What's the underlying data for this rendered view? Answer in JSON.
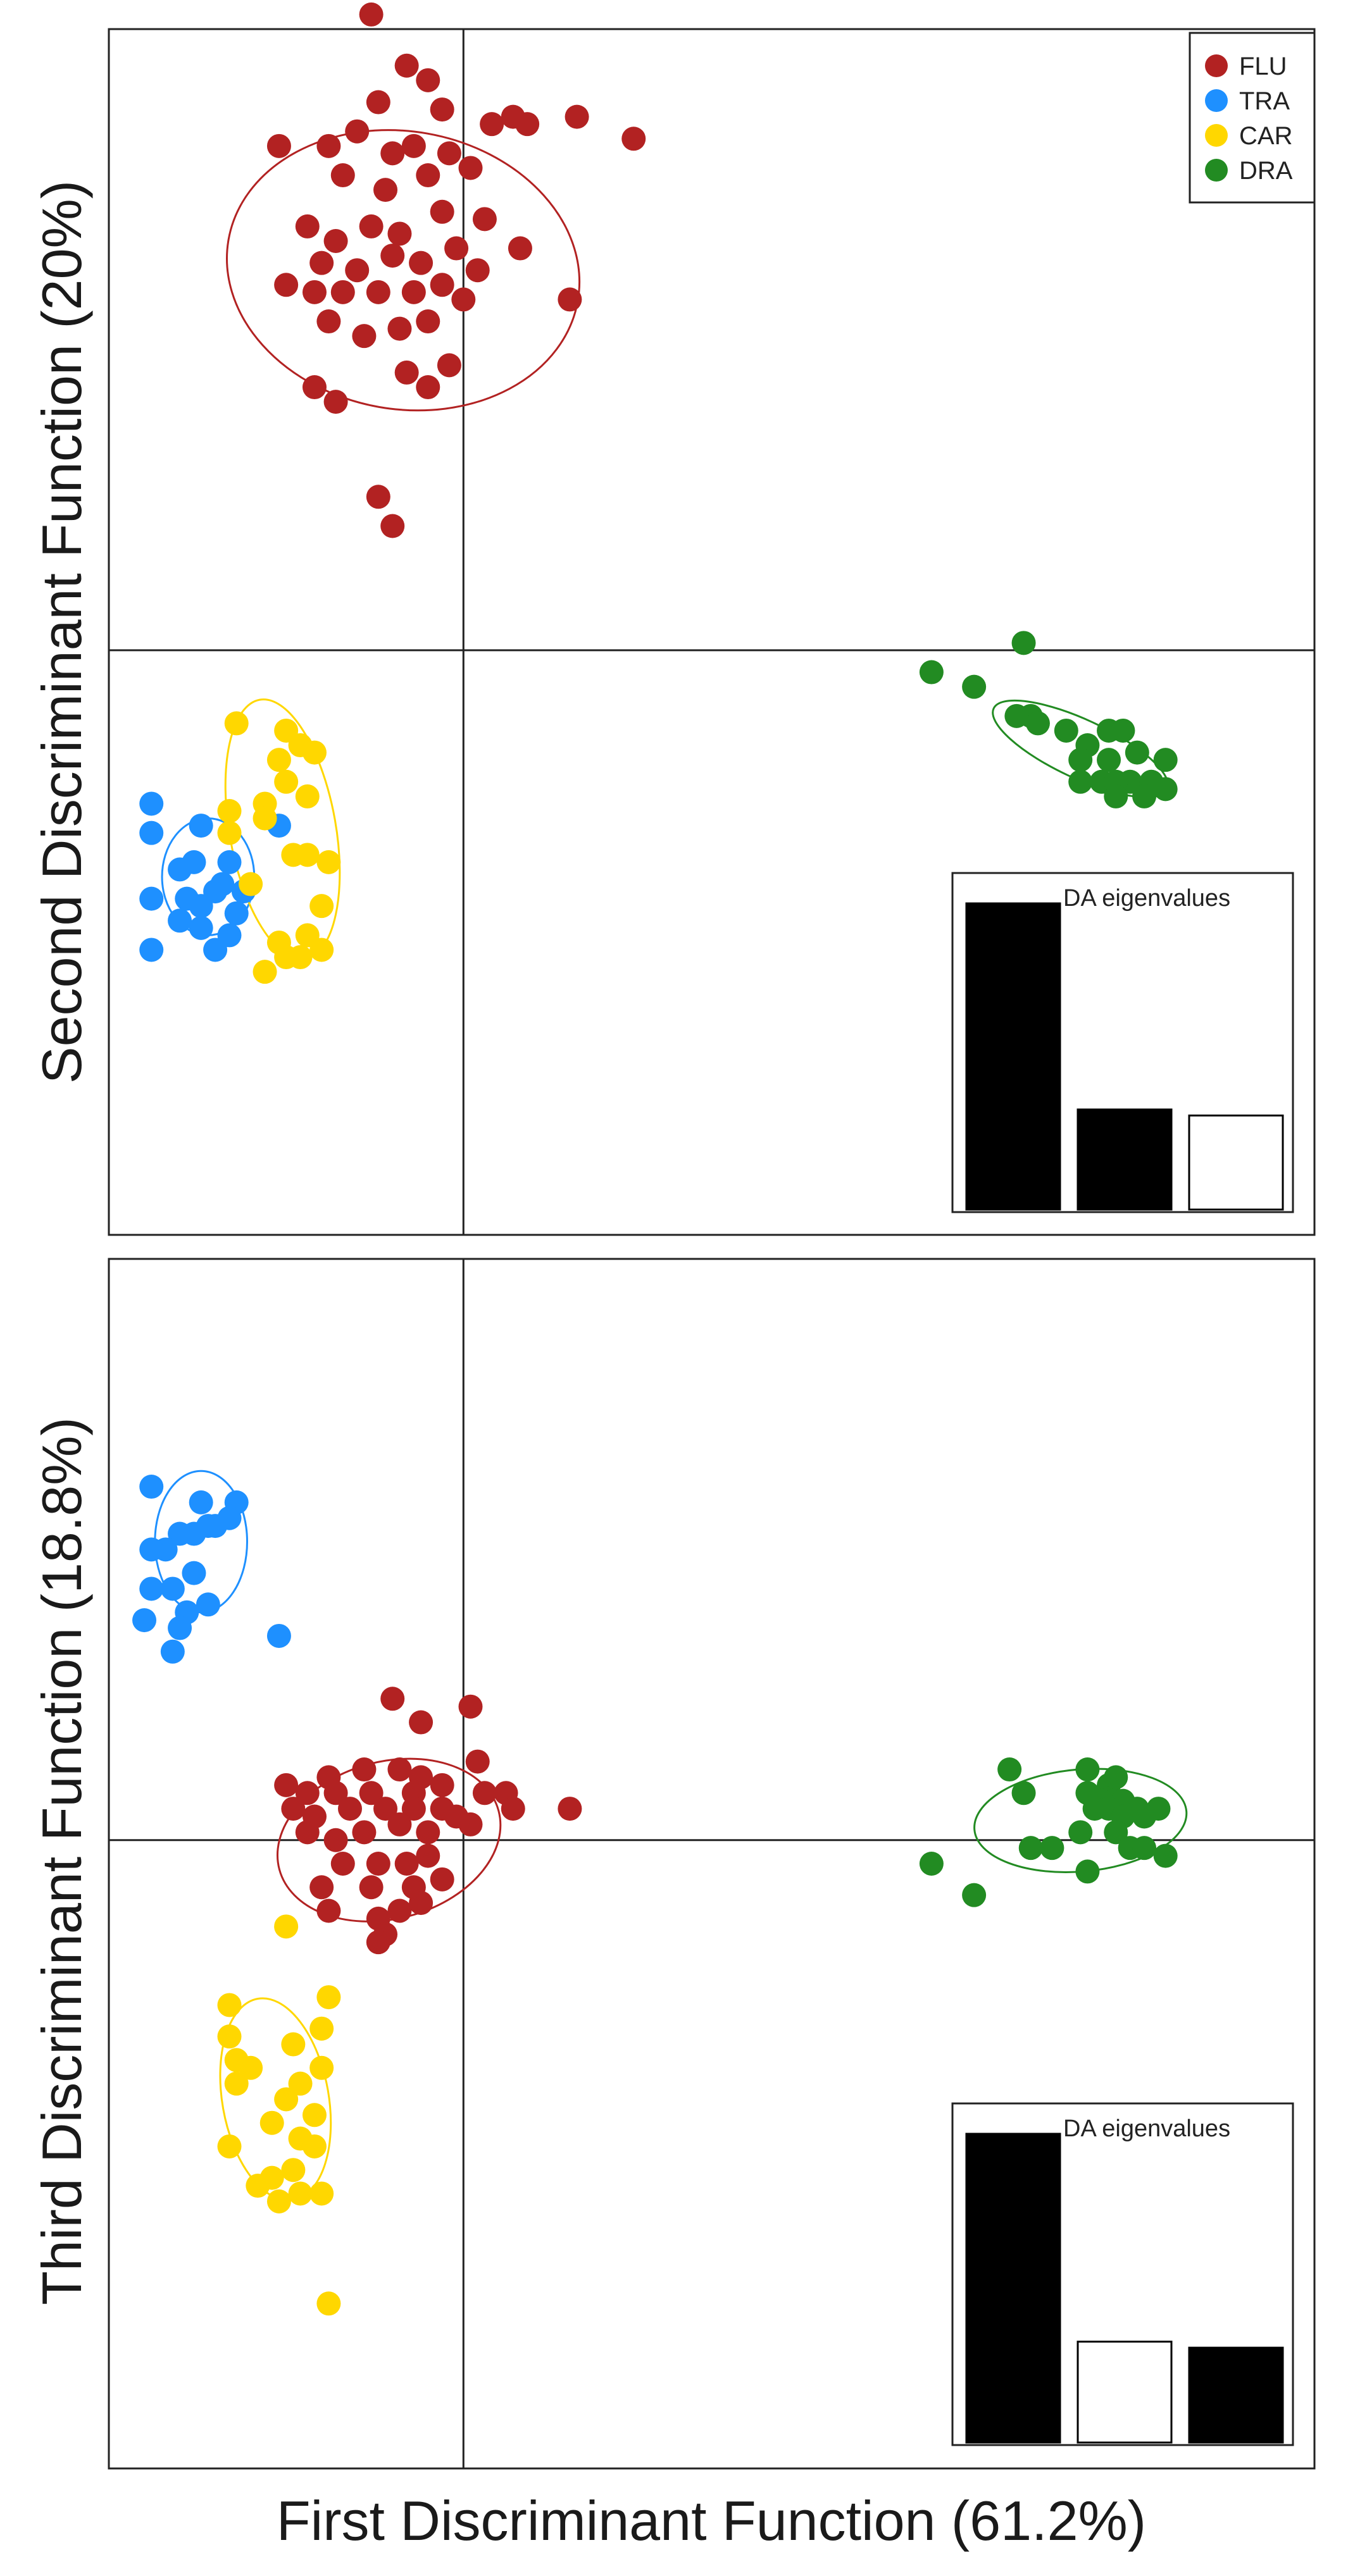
{
  "figure": {
    "xlabel": "First Discriminant Function (61.2%)"
  },
  "chart_data": [
    {
      "type": "scatter",
      "panel": "top",
      "xlabel": "",
      "ylabel": "Second Discriminant Function (20%)",
      "xlim": [
        -5.0,
        12.0
      ],
      "ylim": [
        -8.0,
        8.5
      ],
      "grid": false,
      "crosshair": [
        0,
        0
      ],
      "legend": {
        "placement": "top-right",
        "entries": [
          {
            "label": "FLU",
            "color": "#b22222"
          },
          {
            "label": "TRA",
            "color": "#1e90ff"
          },
          {
            "label": "CAR",
            "color": "#ffd700"
          },
          {
            "label": "DRA",
            "color": "#228b22"
          }
        ]
      },
      "series": [
        {
          "name": "FLU",
          "color": "#b22222",
          "ellipse": {
            "cx": -0.85,
            "cy": 5.2,
            "rx": 2.5,
            "ry": 1.9,
            "angle": 10
          },
          "points": [
            [
              -1.3,
              8.7
            ],
            [
              -0.8,
              8.0
            ],
            [
              -0.5,
              7.8
            ],
            [
              -1.2,
              7.5
            ],
            [
              -1.5,
              7.1
            ],
            [
              -1.9,
              6.9
            ],
            [
              -2.6,
              6.9
            ],
            [
              -0.3,
              7.4
            ],
            [
              0.4,
              7.2
            ],
            [
              0.7,
              7.3
            ],
            [
              0.9,
              7.2
            ],
            [
              1.6,
              7.3
            ],
            [
              2.4,
              7.0
            ],
            [
              -1.0,
              6.8
            ],
            [
              -0.7,
              6.9
            ],
            [
              -0.2,
              6.8
            ],
            [
              -1.7,
              6.5
            ],
            [
              -1.1,
              6.3
            ],
            [
              -0.5,
              6.5
            ],
            [
              0.1,
              6.6
            ],
            [
              -2.2,
              5.8
            ],
            [
              -1.8,
              5.6
            ],
            [
              -1.3,
              5.8
            ],
            [
              -0.9,
              5.7
            ],
            [
              -0.3,
              6.0
            ],
            [
              0.3,
              5.9
            ],
            [
              -2.0,
              5.3
            ],
            [
              -1.5,
              5.2
            ],
            [
              -1.0,
              5.4
            ],
            [
              -0.6,
              5.3
            ],
            [
              -0.1,
              5.5
            ],
            [
              -2.5,
              5.0
            ],
            [
              -2.1,
              4.9
            ],
            [
              -1.7,
              4.9
            ],
            [
              -1.2,
              4.9
            ],
            [
              -0.7,
              4.9
            ],
            [
              -0.3,
              5.0
            ],
            [
              0.2,
              5.2
            ],
            [
              0.8,
              5.5
            ],
            [
              -1.9,
              4.5
            ],
            [
              -1.4,
              4.3
            ],
            [
              -0.9,
              4.4
            ],
            [
              -0.5,
              4.5
            ],
            [
              0.0,
              4.8
            ],
            [
              -2.1,
              3.6
            ],
            [
              -1.8,
              3.4
            ],
            [
              -0.8,
              3.8
            ],
            [
              -0.5,
              3.6
            ],
            [
              -0.2,
              3.9
            ],
            [
              1.5,
              4.8
            ],
            [
              -1.2,
              2.1
            ],
            [
              -1.0,
              1.7
            ]
          ]
        },
        {
          "name": "TRA",
          "color": "#1e90ff",
          "ellipse": {
            "cx": -3.6,
            "cy": -3.1,
            "rx": 0.65,
            "ry": 0.8,
            "angle": 0
          },
          "points": [
            [
              -4.4,
              -2.1
            ],
            [
              -4.4,
              -2.5
            ],
            [
              -3.7,
              -2.4
            ],
            [
              -4.0,
              -3.0
            ],
            [
              -3.8,
              -2.9
            ],
            [
              -3.3,
              -2.9
            ],
            [
              -4.4,
              -3.4
            ],
            [
              -3.9,
              -3.4
            ],
            [
              -3.7,
              -3.5
            ],
            [
              -3.5,
              -3.3
            ],
            [
              -3.4,
              -3.2
            ],
            [
              -3.1,
              -3.3
            ],
            [
              -4.0,
              -3.7
            ],
            [
              -3.7,
              -3.8
            ],
            [
              -3.2,
              -3.6
            ],
            [
              -3.5,
              -4.1
            ],
            [
              -3.3,
              -3.9
            ],
            [
              -4.4,
              -4.1
            ],
            [
              -2.6,
              -2.4
            ]
          ]
        },
        {
          "name": "CAR",
          "color": "#ffd700",
          "ellipse": {
            "cx": -2.55,
            "cy": -2.45,
            "rx": 0.75,
            "ry": 1.8,
            "angle": -10
          },
          "points": [
            [
              -3.2,
              -1.0
            ],
            [
              -2.5,
              -1.1
            ],
            [
              -2.3,
              -1.3
            ],
            [
              -2.6,
              -1.5
            ],
            [
              -2.1,
              -1.4
            ],
            [
              -2.5,
              -1.8
            ],
            [
              -2.8,
              -2.1
            ],
            [
              -3.3,
              -2.2
            ],
            [
              -2.8,
              -2.3
            ],
            [
              -2.2,
              -2.0
            ],
            [
              -3.3,
              -2.5
            ],
            [
              -2.4,
              -2.8
            ],
            [
              -2.2,
              -2.8
            ],
            [
              -1.9,
              -2.9
            ],
            [
              -3.0,
              -3.2
            ],
            [
              -2.0,
              -3.5
            ],
            [
              -2.2,
              -3.9
            ],
            [
              -2.6,
              -4.0
            ],
            [
              -2.0,
              -4.1
            ],
            [
              -2.3,
              -4.2
            ],
            [
              -2.5,
              -4.2
            ],
            [
              -2.8,
              -4.4
            ]
          ]
        },
        {
          "name": "DRA",
          "color": "#228b22",
          "ellipse": {
            "cx": 8.7,
            "cy": -1.35,
            "rx": 1.35,
            "ry": 0.4,
            "angle": 25
          },
          "points": [
            [
              7.9,
              0.1
            ],
            [
              6.6,
              -0.3
            ],
            [
              7.2,
              -0.5
            ],
            [
              7.8,
              -0.9
            ],
            [
              8.0,
              -0.9
            ],
            [
              8.1,
              -1.0
            ],
            [
              8.5,
              -1.1
            ],
            [
              9.1,
              -1.1
            ],
            [
              9.3,
              -1.1
            ],
            [
              8.8,
              -1.3
            ],
            [
              9.5,
              -1.4
            ],
            [
              8.7,
              -1.5
            ],
            [
              9.1,
              -1.5
            ],
            [
              9.4,
              -1.8
            ],
            [
              9.9,
              -1.5
            ],
            [
              8.7,
              -1.8
            ],
            [
              9.0,
              -1.8
            ],
            [
              9.2,
              -1.8
            ],
            [
              9.7,
              -1.8
            ],
            [
              9.2,
              -2.0
            ],
            [
              9.6,
              -2.0
            ],
            [
              9.9,
              -1.9
            ]
          ]
        }
      ],
      "inset": {
        "title": "DA eigenvalues",
        "placement": "bottom-right",
        "bars": [
          {
            "value": 61.2,
            "highlighted": true
          },
          {
            "value": 20.0,
            "highlighted": true
          },
          {
            "value": 18.8,
            "highlighted": false
          }
        ]
      }
    },
    {
      "type": "scatter",
      "panel": "bottom",
      "xlabel": "First Discriminant Function (61.2%)",
      "ylabel": "Third Discriminant Function (18.8%)",
      "xlim": [
        -5.0,
        12.0
      ],
      "ylim": [
        -8.0,
        7.4
      ],
      "grid": false,
      "crosshair": [
        0,
        0
      ],
      "series": [
        {
          "name": "FLU",
          "color": "#b22222",
          "ellipse": {
            "cx": -1.05,
            "cy": 0.0,
            "rx": 1.6,
            "ry": 1.0,
            "angle": -15
          },
          "points": [
            [
              -1.0,
              1.8
            ],
            [
              -0.6,
              1.5
            ],
            [
              0.1,
              1.7
            ],
            [
              0.2,
              1.0
            ],
            [
              -1.9,
              0.8
            ],
            [
              -1.4,
              0.9
            ],
            [
              -0.9,
              0.9
            ],
            [
              -0.6,
              0.8
            ],
            [
              -2.5,
              0.7
            ],
            [
              -2.2,
              0.6
            ],
            [
              -1.8,
              0.6
            ],
            [
              -1.3,
              0.6
            ],
            [
              -0.7,
              0.6
            ],
            [
              -0.3,
              0.7
            ],
            [
              0.3,
              0.6
            ],
            [
              0.6,
              0.6
            ],
            [
              -2.4,
              0.4
            ],
            [
              -2.1,
              0.3
            ],
            [
              -1.6,
              0.4
            ],
            [
              -1.1,
              0.4
            ],
            [
              -0.7,
              0.4
            ],
            [
              -0.3,
              0.4
            ],
            [
              0.7,
              0.4
            ],
            [
              -2.2,
              0.1
            ],
            [
              -1.8,
              0.0
            ],
            [
              -1.4,
              0.1
            ],
            [
              -0.9,
              0.2
            ],
            [
              -0.5,
              0.1
            ],
            [
              -0.1,
              0.3
            ],
            [
              0.1,
              0.2
            ],
            [
              1.5,
              0.4
            ],
            [
              -1.7,
              -0.3
            ],
            [
              -1.2,
              -0.3
            ],
            [
              -0.8,
              -0.3
            ],
            [
              -0.5,
              -0.2
            ],
            [
              -2.0,
              -0.6
            ],
            [
              -1.3,
              -0.6
            ],
            [
              -0.7,
              -0.6
            ],
            [
              -0.3,
              -0.5
            ],
            [
              -1.9,
              -0.9
            ],
            [
              -1.2,
              -1.0
            ],
            [
              -0.9,
              -0.9
            ],
            [
              -0.6,
              -0.8
            ],
            [
              -1.1,
              -1.2
            ],
            [
              -1.2,
              -1.3
            ]
          ]
        },
        {
          "name": "TRA",
          "color": "#1e90ff",
          "ellipse": {
            "cx": -3.7,
            "cy": 3.8,
            "rx": 0.65,
            "ry": 0.9,
            "angle": 0
          },
          "points": [
            [
              -4.4,
              4.5
            ],
            [
              -3.7,
              4.3
            ],
            [
              -3.2,
              4.3
            ],
            [
              -3.3,
              4.1
            ],
            [
              -3.6,
              4.0
            ],
            [
              -3.5,
              4.0
            ],
            [
              -3.8,
              3.9
            ],
            [
              -4.0,
              3.9
            ],
            [
              -4.2,
              3.7
            ],
            [
              -4.4,
              3.7
            ],
            [
              -3.8,
              3.4
            ],
            [
              -4.4,
              3.2
            ],
            [
              -4.1,
              3.2
            ],
            [
              -3.6,
              3.0
            ],
            [
              -3.9,
              2.9
            ],
            [
              -4.5,
              2.8
            ],
            [
              -4.0,
              2.7
            ],
            [
              -2.6,
              2.6
            ],
            [
              -4.1,
              2.4
            ]
          ]
        },
        {
          "name": "CAR",
          "color": "#ffd700",
          "ellipse": {
            "cx": -2.65,
            "cy": -3.3,
            "rx": 0.75,
            "ry": 1.3,
            "angle": -10
          },
          "points": [
            [
              -2.5,
              -1.1
            ],
            [
              -1.9,
              -2.0
            ],
            [
              -3.3,
              -2.1
            ],
            [
              -2.0,
              -2.4
            ],
            [
              -3.3,
              -2.5
            ],
            [
              -2.4,
              -2.6
            ],
            [
              -3.2,
              -2.8
            ],
            [
              -3.0,
              -2.9
            ],
            [
              -2.0,
              -2.9
            ],
            [
              -3.2,
              -3.1
            ],
            [
              -2.3,
              -3.1
            ],
            [
              -2.5,
              -3.3
            ],
            [
              -2.1,
              -3.5
            ],
            [
              -2.7,
              -3.6
            ],
            [
              -3.3,
              -3.9
            ],
            [
              -2.3,
              -3.8
            ],
            [
              -2.1,
              -3.9
            ],
            [
              -2.4,
              -4.2
            ],
            [
              -2.7,
              -4.3
            ],
            [
              -2.3,
              -4.5
            ],
            [
              -2.6,
              -4.6
            ],
            [
              -2.9,
              -4.4
            ],
            [
              -2.0,
              -4.5
            ],
            [
              -1.9,
              -5.9
            ]
          ]
        },
        {
          "name": "DRA",
          "color": "#228b22",
          "ellipse": {
            "cx": 8.7,
            "cy": 0.25,
            "rx": 1.5,
            "ry": 0.65,
            "angle": -5
          },
          "points": [
            [
              7.7,
              0.9
            ],
            [
              8.8,
              0.9
            ],
            [
              9.1,
              0.7
            ],
            [
              9.2,
              0.8
            ],
            [
              7.9,
              0.6
            ],
            [
              8.8,
              0.6
            ],
            [
              9.0,
              0.5
            ],
            [
              9.3,
              0.5
            ],
            [
              9.5,
              0.4
            ],
            [
              9.8,
              0.4
            ],
            [
              8.9,
              0.4
            ],
            [
              9.1,
              0.4
            ],
            [
              9.3,
              0.3
            ],
            [
              9.6,
              0.3
            ],
            [
              8.7,
              0.1
            ],
            [
              9.2,
              0.1
            ],
            [
              8.0,
              -0.1
            ],
            [
              8.3,
              -0.1
            ],
            [
              9.4,
              -0.1
            ],
            [
              9.6,
              -0.1
            ],
            [
              9.9,
              -0.2
            ],
            [
              8.8,
              -0.4
            ],
            [
              6.6,
              -0.3
            ],
            [
              7.2,
              -0.7
            ]
          ]
        }
      ],
      "inset": {
        "title": "DA eigenvalues",
        "placement": "bottom-right",
        "bars": [
          {
            "value": 61.2,
            "highlighted": true
          },
          {
            "value": 20.0,
            "highlighted": false
          },
          {
            "value": 18.8,
            "highlighted": true
          }
        ]
      }
    }
  ]
}
